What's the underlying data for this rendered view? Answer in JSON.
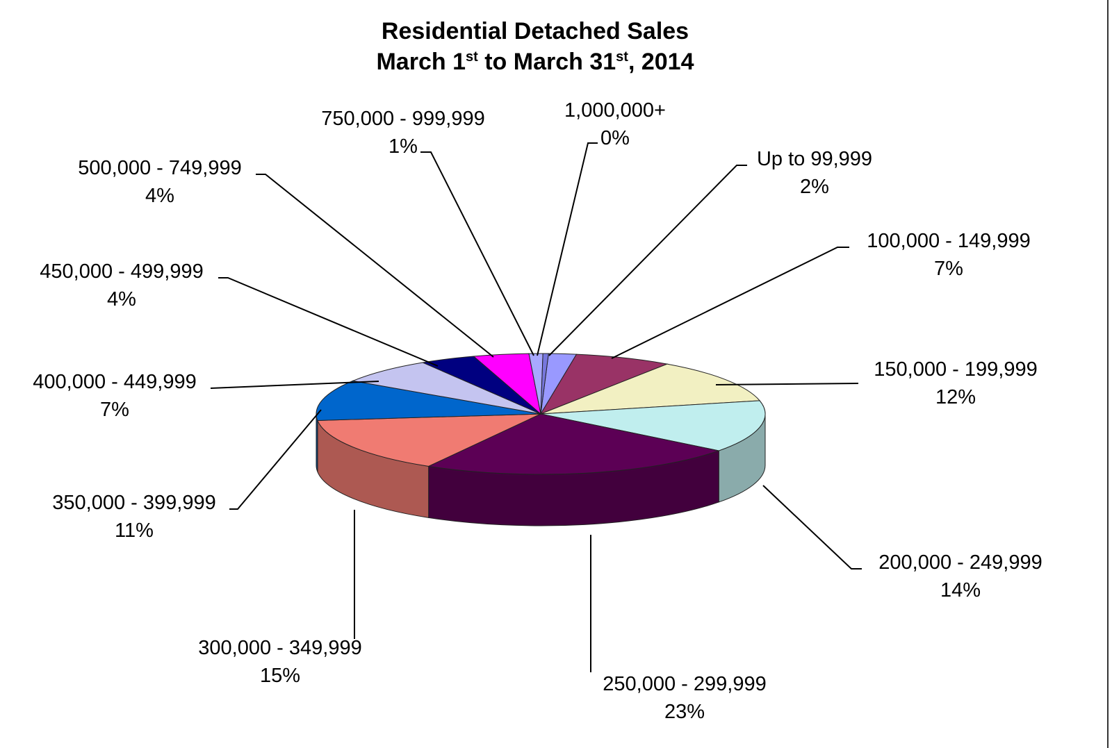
{
  "chart_data": {
    "type": "pie",
    "title": {
      "line1": "Residential Detached Sales",
      "line2_parts": [
        {
          "text": "March 1",
          "sup": false
        },
        {
          "text": "st",
          "sup": true
        },
        {
          "text": " to March 31",
          "sup": false
        },
        {
          "text": "st",
          "sup": true
        },
        {
          "text": ", 2014",
          "sup": false
        }
      ]
    },
    "slices": [
      {
        "label": "Up to 99,999",
        "value": 2,
        "pct": "2%",
        "color": "#9999ff"
      },
      {
        "label": "100,000 - 149,999",
        "value": 7,
        "pct": "7%",
        "color": "#993366"
      },
      {
        "label": "150,000 - 199,999",
        "value": 12,
        "pct": "12%",
        "color": "#f2f0c2"
      },
      {
        "label": "200,000 - 249,999",
        "value": 14,
        "pct": "14%",
        "color": "#c0eeee"
      },
      {
        "label": "250,000 - 299,999",
        "value": 23,
        "pct": "23%",
        "color": "#5c0055"
      },
      {
        "label": "300,000 - 349,999",
        "value": 15,
        "pct": "15%",
        "color": "#f07b72"
      },
      {
        "label": "350,000 - 399,999",
        "value": 11,
        "pct": "11%",
        "color": "#0066cc"
      },
      {
        "label": "400,000 - 449,999",
        "value": 7,
        "pct": "7%",
        "color": "#c4c4f0"
      },
      {
        "label": "450,000 - 499,999",
        "value": 4,
        "pct": "4%",
        "color": "#000080"
      },
      {
        "label": "500,000 - 749,999",
        "value": 4,
        "pct": "4%",
        "color": "#ff00ff"
      },
      {
        "label": "750,000 - 999,999",
        "value": 1,
        "pct": "1%",
        "color": "#a8a8ff"
      },
      {
        "label": "1,000,000+",
        "value": 0.4,
        "pct": "0%",
        "color": "#7777dd"
      }
    ]
  }
}
